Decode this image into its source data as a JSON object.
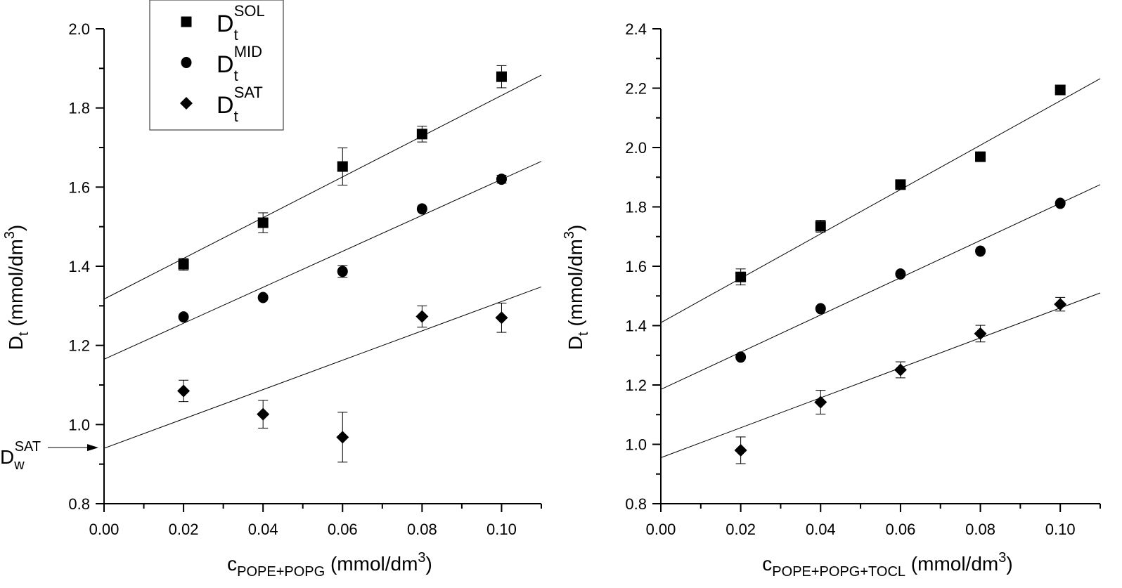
{
  "chart_data": [
    {
      "type": "scatter",
      "id": "left",
      "title": "",
      "xlabel": {
        "main": "c",
        "sub": "POPE+POPG",
        "unit": " (mmol/dm",
        "sup": "3",
        "close": ")"
      },
      "ylabel": {
        "main": "D",
        "sub": "t",
        "unit": " (mmol/dm",
        "sup": "3",
        "close": ")"
      },
      "xlim": [
        0.0,
        0.11
      ],
      "ylim": [
        0.8,
        2.0
      ],
      "xticks": [
        "0.00",
        "0.02",
        "0.04",
        "0.06",
        "0.08",
        "0.10"
      ],
      "xtick_values": [
        0.0,
        0.02,
        0.04,
        0.06,
        0.08,
        0.1
      ],
      "xminor": [
        0.01,
        0.03,
        0.05,
        0.07,
        0.09,
        0.11
      ],
      "yticks": [
        "0.8",
        "1.0",
        "1.2",
        "1.4",
        "1.6",
        "1.8",
        "2.0"
      ],
      "ytick_values": [
        0.8,
        1.0,
        1.2,
        1.4,
        1.6,
        1.8,
        2.0
      ],
      "yminor": [
        0.9,
        1.1,
        1.3,
        1.5,
        1.7,
        1.9
      ],
      "grid": false,
      "legend": {
        "position": "top-left",
        "entries": [
          {
            "marker": "square",
            "main": "D",
            "sub": "t",
            "sup": "SOL"
          },
          {
            "marker": "circle",
            "main": "D",
            "sub": "t",
            "sup": "MID"
          },
          {
            "marker": "diamond",
            "main": "D",
            "sub": "t",
            "sup": "SAT"
          }
        ]
      },
      "annotation": {
        "main": "D",
        "sub": "w",
        "sup": "SAT",
        "arrow_to_y": 0.94
      },
      "x": [
        0.02,
        0.04,
        0.06,
        0.08,
        0.1
      ],
      "series": [
        {
          "name": "Dt SOL",
          "marker": "square",
          "values": [
            1.405,
            1.51,
            1.652,
            1.734,
            1.879
          ],
          "errors": [
            0.015,
            0.025,
            0.047,
            0.02,
            0.028
          ],
          "fit": {
            "y_at_0": 1.317,
            "y_at_xmax": 1.883
          }
        },
        {
          "name": "Dt MID",
          "marker": "circle",
          "values": [
            1.272,
            1.321,
            1.387,
            1.545,
            1.62
          ],
          "errors": [
            0.0,
            0.0,
            0.015,
            0.0,
            0.01
          ],
          "fit": {
            "y_at_0": 1.165,
            "y_at_xmax": 1.665
          }
        },
        {
          "name": "Dt SAT",
          "marker": "diamond",
          "values": [
            1.085,
            1.026,
            0.968,
            1.273,
            1.27
          ],
          "errors": [
            0.027,
            0.035,
            0.063,
            0.027,
            0.037
          ],
          "fit": {
            "y_at_0": 0.94,
            "y_at_xmax": 1.348
          }
        }
      ]
    },
    {
      "type": "scatter",
      "id": "right",
      "title": "",
      "xlabel": {
        "main": "c",
        "sub": "POPE+POPG+TOCL",
        "unit": " (mmol/dm",
        "sup": "3",
        "close": ")"
      },
      "ylabel": {
        "main": "D",
        "sub": "t",
        "unit": " (mmol/dm",
        "sup": "3",
        "close": ")"
      },
      "xlim": [
        0.0,
        0.11
      ],
      "ylim": [
        0.8,
        2.4
      ],
      "xticks": [
        "0.00",
        "0.02",
        "0.04",
        "0.06",
        "0.08",
        "0.10"
      ],
      "xtick_values": [
        0.0,
        0.02,
        0.04,
        0.06,
        0.08,
        0.1
      ],
      "xminor": [
        0.01,
        0.03,
        0.05,
        0.07,
        0.09,
        0.11
      ],
      "yticks": [
        "0.8",
        "1.0",
        "1.2",
        "1.4",
        "1.6",
        "1.8",
        "2.0",
        "2.2",
        "2.4"
      ],
      "ytick_values": [
        0.8,
        1.0,
        1.2,
        1.4,
        1.6,
        1.8,
        2.0,
        2.2,
        2.4
      ],
      "yminor": [
        0.9,
        1.1,
        1.3,
        1.5,
        1.7,
        1.9,
        2.1,
        2.3
      ],
      "grid": false,
      "x": [
        0.02,
        0.04,
        0.06,
        0.08,
        0.1
      ],
      "series": [
        {
          "name": "Dt SOL",
          "marker": "square",
          "values": [
            1.564,
            1.735,
            1.875,
            1.969,
            2.194
          ],
          "errors": [
            0.027,
            0.02,
            0.0,
            0.0,
            0.0
          ],
          "fit": {
            "y_at_0": 1.41,
            "y_at_xmax": 2.232
          }
        },
        {
          "name": "Dt MID",
          "marker": "circle",
          "values": [
            1.294,
            1.457,
            1.574,
            1.651,
            1.812
          ],
          "errors": [
            0.0,
            0.0,
            0.0,
            0.0,
            0.0
          ],
          "fit": {
            "y_at_0": 1.185,
            "y_at_xmax": 1.875
          }
        },
        {
          "name": "Dt SAT",
          "marker": "diamond",
          "values": [
            0.98,
            1.142,
            1.251,
            1.373,
            1.472
          ],
          "errors": [
            0.045,
            0.04,
            0.027,
            0.028,
            0.023
          ],
          "fit": {
            "y_at_0": 0.955,
            "y_at_xmax": 1.51
          }
        }
      ]
    }
  ]
}
